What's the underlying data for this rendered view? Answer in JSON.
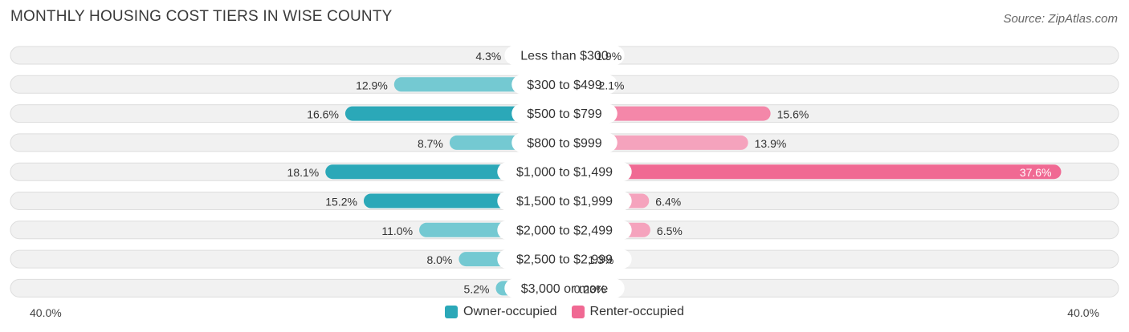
{
  "header": {
    "title": "MONTHLY HOUSING COST TIERS IN WISE COUNTY",
    "source": "Source: ZipAtlas.com"
  },
  "colors": {
    "owner": "#2ba8b8",
    "owner_light": "#74c9d2",
    "renter": "#f06993",
    "renter_light": "#f5a3bd"
  },
  "chart_data": {
    "type": "bar",
    "orientation": "horizontal-diverging",
    "categories": [
      "Less than $300",
      "$300 to $499",
      "$500 to $799",
      "$800 to $999",
      "$1,000 to $1,499",
      "$1,500 to $1,999",
      "$2,000 to $2,499",
      "$2,500 to $2,999",
      "$3,000 or more"
    ],
    "series": [
      {
        "name": "Owner-occupied",
        "side": "left",
        "values": [
          4.3,
          12.9,
          16.6,
          8.7,
          18.1,
          15.2,
          11.0,
          8.0,
          5.2
        ],
        "labels": [
          "4.3%",
          "12.9%",
          "16.6%",
          "8.7%",
          "18.1%",
          "15.2%",
          "11.0%",
          "8.0%",
          "5.2%"
        ]
      },
      {
        "name": "Renter-occupied",
        "side": "right",
        "values": [
          1.9,
          2.1,
          15.6,
          13.9,
          37.6,
          6.4,
          6.5,
          1.3,
          0.23
        ],
        "labels": [
          "1.9%",
          "2.1%",
          "15.6%",
          "13.9%",
          "37.6%",
          "6.4%",
          "6.5%",
          "1.3%",
          "0.23%"
        ]
      }
    ],
    "axis": {
      "min_label": "40.0%",
      "max_label": "40.0%",
      "max": 40.0
    },
    "legend_position": "bottom-center"
  }
}
